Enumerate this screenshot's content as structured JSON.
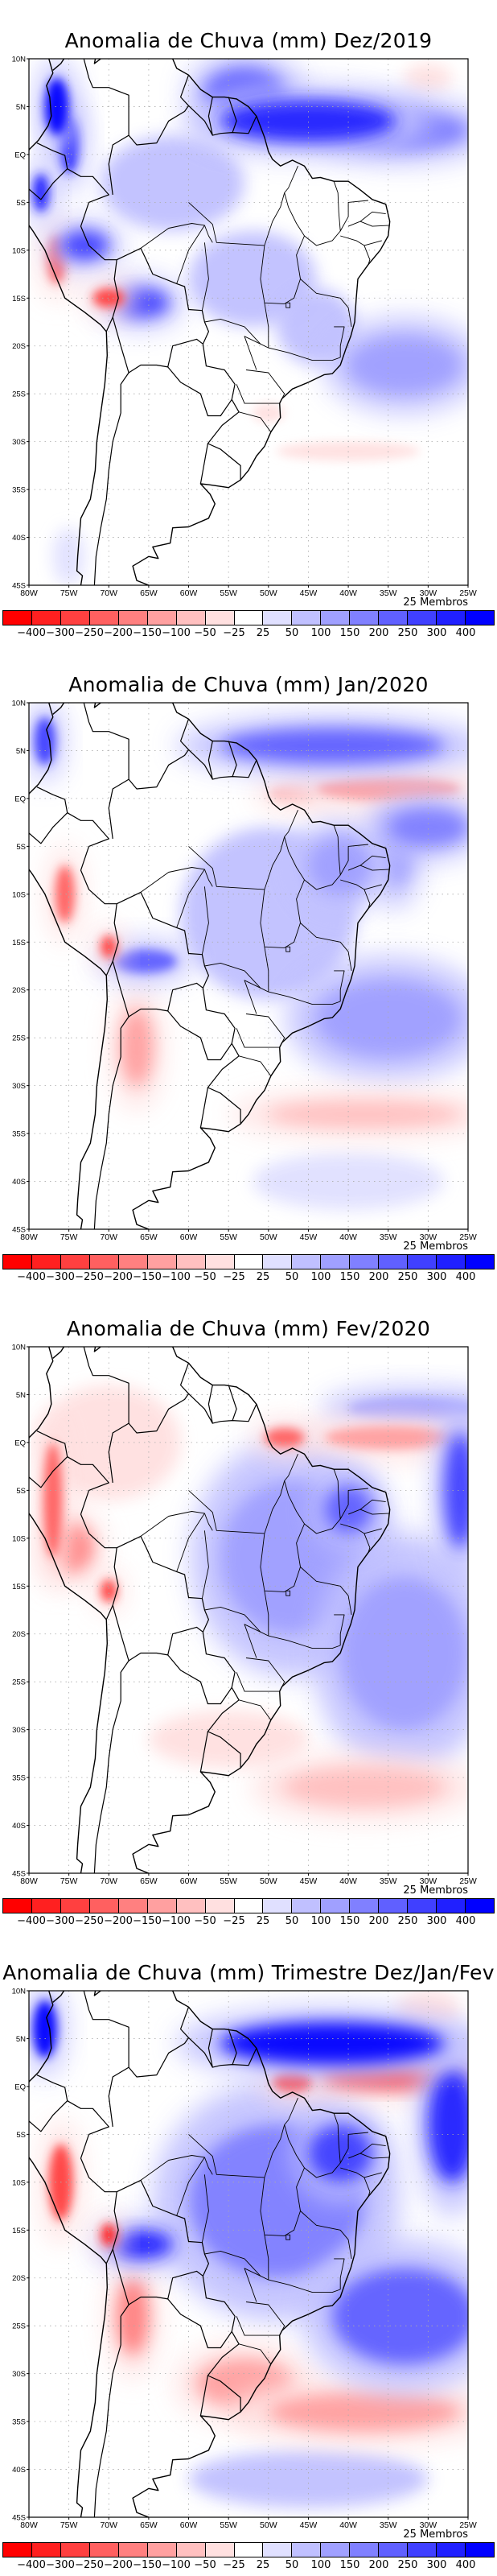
{
  "figure": {
    "members_label": "25 Membros",
    "lat_ticks": [
      {
        "value": 10,
        "label": "10N"
      },
      {
        "value": 5,
        "label": "5N"
      },
      {
        "value": 0,
        "label": "EQ"
      },
      {
        "value": -5,
        "label": "5S"
      },
      {
        "value": -10,
        "label": "10S"
      },
      {
        "value": -15,
        "label": "15S"
      },
      {
        "value": -20,
        "label": "20S"
      },
      {
        "value": -25,
        "label": "25S"
      },
      {
        "value": -30,
        "label": "30S"
      },
      {
        "value": -35,
        "label": "35S"
      },
      {
        "value": -40,
        "label": "40S"
      },
      {
        "value": -45,
        "label": "45S"
      }
    ],
    "lon_ticks": [
      {
        "value": -80,
        "label": "80W"
      },
      {
        "value": -75,
        "label": "75W"
      },
      {
        "value": -70,
        "label": "70W"
      },
      {
        "value": -65,
        "label": "65W"
      },
      {
        "value": -60,
        "label": "60W"
      },
      {
        "value": -55,
        "label": "55W"
      },
      {
        "value": -50,
        "label": "50W"
      },
      {
        "value": -45,
        "label": "45W"
      },
      {
        "value": -40,
        "label": "40W"
      },
      {
        "value": -35,
        "label": "35W"
      },
      {
        "value": -30,
        "label": "30W"
      },
      {
        "value": -25,
        "label": "25W"
      }
    ],
    "extent": {
      "lon_min": -80,
      "lon_max": -25,
      "lat_min": -45,
      "lat_max": 10
    },
    "colorbar": {
      "colors": [
        "#ff0000",
        "#ff2020",
        "#ff4040",
        "#ff6060",
        "#ff8080",
        "#ffa0a0",
        "#ffc0c0",
        "#ffe0e0",
        "#ffffff",
        "#e0e0ff",
        "#c0c0ff",
        "#a0a0ff",
        "#8080ff",
        "#6060ff",
        "#4040ff",
        "#2020ff",
        "#0000ff"
      ],
      "labels": [
        "-400",
        "-300",
        "-250",
        "-200",
        "-150",
        "-100",
        "-50",
        "-25",
        "25",
        "50",
        "100",
        "150",
        "200",
        "250",
        "300",
        "400"
      ]
    }
  },
  "chart_data": [
    {
      "type": "heatmap",
      "title": "Anomalia de Chuva (mm) Dez/2019",
      "variable": "precipitation anomaly (mm)",
      "ensemble": "25 Membros",
      "xlabel": "",
      "ylabel": "",
      "xlim": [
        -80,
        -25
      ],
      "ylim": [
        -45,
        10
      ],
      "levels": [
        -400,
        -300,
        -250,
        -200,
        -150,
        -100,
        -50,
        -25,
        25,
        50,
        100,
        150,
        200,
        250,
        300,
        400
      ],
      "features": [
        {
          "desc": "strong wet band N of Amazon mouth (ITCZ)",
          "lon": -45,
          "lat": 3.5,
          "rx": 11,
          "ry": 2.2,
          "level": 300
        },
        {
          "desc": "wet band extension east",
          "lon": -33,
          "lat": 2.5,
          "rx": 8,
          "ry": 2,
          "level": 150
        },
        {
          "desc": "wet band west",
          "lon": -53,
          "lat": 6.5,
          "rx": 5,
          "ry": 2.5,
          "level": 200
        },
        {
          "desc": "Colombian Andes wet",
          "lon": -76.5,
          "lat": 5,
          "rx": 1.5,
          "ry": 3,
          "level": 400
        },
        {
          "desc": "Andes wet spots",
          "lon": -75,
          "lat": 1,
          "rx": 1.2,
          "ry": 3,
          "level": 300
        },
        {
          "desc": "Peru coast wet",
          "lon": -78.5,
          "lat": -4,
          "rx": 1,
          "ry": 2,
          "level": 300
        },
        {
          "desc": "Peruvian Andes dry",
          "lon": -76.5,
          "lat": -11,
          "rx": 1.2,
          "ry": 2.5,
          "level": -250
        },
        {
          "desc": "Bolivian Andes dry",
          "lon": -70,
          "lat": -15,
          "rx": 2,
          "ry": 1,
          "level": -300
        },
        {
          "desc": "Peru highlands wet",
          "lon": -73,
          "lat": -9.5,
          "rx": 3,
          "ry": 1.5,
          "level": 250
        },
        {
          "desc": "Bolivia wet",
          "lon": -66,
          "lat": -15.5,
          "rx": 3.5,
          "ry": 1.5,
          "level": 250
        },
        {
          "desc": "Amazon weak wet",
          "lon": -62,
          "lat": -3,
          "rx": 9,
          "ry": 5,
          "level": 50
        },
        {
          "desc": "Brazil interior weak wet",
          "lon": -52,
          "lat": -13,
          "rx": 8,
          "ry": 5,
          "level": 50
        },
        {
          "desc": "Southeast Brazil weak wet",
          "lon": -44,
          "lat": -18,
          "rx": 5,
          "ry": 4,
          "level": 50
        },
        {
          "desc": "SACZ ocean wet",
          "lon": -33,
          "lat": -22,
          "rx": 7,
          "ry": 3,
          "level": 100
        },
        {
          "desc": "Atlantic weak dry NE",
          "lon": -30,
          "lat": 8,
          "rx": 3,
          "ry": 1.5,
          "level": -50
        },
        {
          "desc": "South Brazil dry",
          "lon": -50,
          "lat": -27,
          "rx": 2,
          "ry": 1,
          "level": -50
        },
        {
          "desc": "South Atlantic dry streaks",
          "lon": -40,
          "lat": -31,
          "rx": 9,
          "ry": 1,
          "level": -50
        },
        {
          "desc": "Patagonia weak wet",
          "lon": -75,
          "lat": -42,
          "rx": 2,
          "ry": 3,
          "level": 25
        }
      ]
    },
    {
      "type": "heatmap",
      "title": "Anomalia de Chuva (mm) Jan/2020",
      "variable": "precipitation anomaly (mm)",
      "ensemble": "25 Membros",
      "xlabel": "",
      "ylabel": "",
      "xlim": [
        -80,
        -25
      ],
      "ylim": [
        -45,
        10
      ],
      "levels": [
        -400,
        -300,
        -250,
        -200,
        -150,
        -100,
        -50,
        -25,
        25,
        50,
        100,
        150,
        200,
        250,
        300,
        400
      ],
      "features": [
        {
          "desc": "wet band N of equator",
          "lon": -42,
          "lat": 5.5,
          "rx": 14,
          "ry": 1.8,
          "level": 200
        },
        {
          "desc": "dry band along equator Atlantic",
          "lon": -35,
          "lat": 1,
          "rx": 9,
          "ry": 1.2,
          "level": -150
        },
        {
          "desc": "Amazon mouth dry",
          "lon": -47,
          "lat": 0.5,
          "rx": 3,
          "ry": 0.8,
          "level": -100
        },
        {
          "desc": "wet band S of equator east",
          "lon": -30,
          "lat": -3,
          "rx": 5,
          "ry": 2,
          "level": 150
        },
        {
          "desc": "NE Brazil coast wet",
          "lon": -34,
          "lat": -5,
          "rx": 2,
          "ry": 4,
          "level": 100
        },
        {
          "desc": "Colombia wet",
          "lon": -78,
          "lat": 6,
          "rx": 1.3,
          "ry": 2.5,
          "level": 250
        },
        {
          "desc": "Peruvian Andes dry",
          "lon": -75.5,
          "lat": -10,
          "rx": 1.2,
          "ry": 3,
          "level": -250
        },
        {
          "desc": "Bolivian Andes dry spot",
          "lon": -70,
          "lat": -15.5,
          "rx": 1,
          "ry": 1.2,
          "level": -300
        },
        {
          "desc": "Bolivia wet diagonal",
          "lon": -65.5,
          "lat": -17,
          "rx": 4,
          "ry": 1.2,
          "level": 200
        },
        {
          "desc": "NW Argentina dry",
          "lon": -66.5,
          "lat": -26,
          "rx": 2,
          "ry": 4,
          "level": -150
        },
        {
          "desc": "Brazil interior wet",
          "lon": -50,
          "lat": -12,
          "rx": 11,
          "ry": 9,
          "level": 50
        },
        {
          "desc": "NE Brazil wet",
          "lon": -41,
          "lat": -7,
          "rx": 4,
          "ry": 3,
          "level": 100
        },
        {
          "desc": "SACZ ocean wet",
          "lon": -35,
          "lat": -23,
          "rx": 9,
          "ry": 4,
          "level": 100
        },
        {
          "desc": "South Atlantic dry streak",
          "lon": -38,
          "lat": -33,
          "rx": 12,
          "ry": 1.3,
          "level": -100
        },
        {
          "desc": "southern Atlantic weak wet",
          "lon": -40,
          "lat": -40,
          "rx": 12,
          "ry": 3,
          "level": 25
        }
      ]
    },
    {
      "type": "heatmap",
      "title": "Anomalia de Chuva (mm) Fev/2020",
      "variable": "precipitation anomaly (mm)",
      "ensemble": "25 Membros",
      "xlabel": "",
      "ylabel": "",
      "xlim": [
        -80,
        -25
      ],
      "ylim": [
        -45,
        10
      ],
      "levels": [
        -400,
        -300,
        -250,
        -200,
        -150,
        -100,
        -50,
        -25,
        25,
        50,
        100,
        150,
        200,
        250,
        300,
        400
      ],
      "features": [
        {
          "desc": "NW South America dry",
          "lon": -70,
          "lat": 0,
          "rx": 9,
          "ry": 6,
          "level": -50
        },
        {
          "desc": "Andes dry line",
          "lon": -77,
          "lat": -6,
          "rx": 1.2,
          "ry": 6,
          "level": -250
        },
        {
          "desc": "Peru Andes dry",
          "lon": -74.5,
          "lat": -11,
          "rx": 2.5,
          "ry": 2.5,
          "level": -200
        },
        {
          "desc": "Bolivian dry spot",
          "lon": -70,
          "lat": -15.5,
          "rx": 1,
          "ry": 1.2,
          "level": -300
        },
        {
          "desc": "Amazon mouth dry",
          "lon": -48,
          "lat": 0.5,
          "rx": 2.5,
          "ry": 1,
          "level": -250
        },
        {
          "desc": "Atlantic dry band",
          "lon": -35,
          "lat": 0.5,
          "rx": 8,
          "ry": 1.2,
          "level": -150
        },
        {
          "desc": "Atlantic wet band north",
          "lon": -32,
          "lat": 3.5,
          "rx": 8,
          "ry": 1.2,
          "level": 100
        },
        {
          "desc": "Central Brazil wet",
          "lon": -47,
          "lat": -12,
          "rx": 9,
          "ry": 8,
          "level": 100
        },
        {
          "desc": "NE Brazil strong wet",
          "lon": -40,
          "lat": -7,
          "rx": 3,
          "ry": 2.5,
          "level": 200
        },
        {
          "desc": "Far east Atlantic wet",
          "lon": -26,
          "lat": -5,
          "rx": 2,
          "ry": 6,
          "level": 250
        },
        {
          "desc": "South Atlantic wet",
          "lon": -33,
          "lat": -22,
          "rx": 8,
          "ry": 8,
          "level": 100
        },
        {
          "desc": "South Brazil / Argentina dry",
          "lon": -55,
          "lat": -31,
          "rx": 10,
          "ry": 3,
          "level": -50
        },
        {
          "desc": "South Atlantic dry band",
          "lon": -38,
          "lat": -36,
          "rx": 10,
          "ry": 2,
          "level": -100
        }
      ]
    },
    {
      "type": "heatmap",
      "title": "Anomalia de Chuva (mm) Trimestre Dez/Jan/Fev",
      "variable": "precipitation anomaly (mm)",
      "ensemble": "25 Membros",
      "xlabel": "",
      "ylabel": "",
      "xlim": [
        -80,
        -25
      ],
      "ylim": [
        -45,
        10
      ],
      "levels": [
        -400,
        -300,
        -250,
        -200,
        -150,
        -100,
        -50,
        -25,
        25,
        50,
        100,
        150,
        200,
        250,
        300,
        400
      ],
      "features": [
        {
          "desc": "strong wet band N (ITCZ)",
          "lon": -42,
          "lat": 4.5,
          "rx": 14,
          "ry": 2.2,
          "level": 400
        },
        {
          "desc": "dry band along equator",
          "lon": -34,
          "lat": 1,
          "rx": 10,
          "ry": 1.3,
          "level": -300
        },
        {
          "desc": "Amazon mouth dry",
          "lon": -47,
          "lat": 0.5,
          "rx": 2.5,
          "ry": 1,
          "level": -300
        },
        {
          "desc": "weak dry NE Atlantic",
          "lon": -30,
          "lat": 8,
          "rx": 4,
          "ry": 2,
          "level": -50
        },
        {
          "desc": "east Atlantic wet",
          "lon": -27,
          "lat": -4,
          "rx": 3,
          "ry": 6,
          "level": 300
        },
        {
          "desc": "NE Brazil strong wet",
          "lon": -41,
          "lat": -7,
          "rx": 4,
          "ry": 3,
          "level": 250
        },
        {
          "desc": "central Brazil wet",
          "lon": -49,
          "lat": -12,
          "rx": 11,
          "ry": 8,
          "level": 150
        },
        {
          "desc": "Colombia wet",
          "lon": -78,
          "lat": 6,
          "rx": 1.5,
          "ry": 3,
          "level": 400
        },
        {
          "desc": "Peru Andes dry",
          "lon": -76,
          "lat": -10,
          "rx": 1.5,
          "ry": 4,
          "level": -300
        },
        {
          "desc": "Bolivia dry spot",
          "lon": -70,
          "lat": -15.5,
          "rx": 1,
          "ry": 1.2,
          "level": -400
        },
        {
          "desc": "Bolivia wet diagonal",
          "lon": -66,
          "lat": -16.5,
          "rx": 4,
          "ry": 1.5,
          "level": 300
        },
        {
          "desc": "NW Argentina dry",
          "lon": -67,
          "lat": -24,
          "rx": 2,
          "ry": 4,
          "level": -200
        },
        {
          "desc": "SACZ ocean wet",
          "lon": -33,
          "lat": -24,
          "rx": 9,
          "ry": 5,
          "level": 200
        },
        {
          "desc": "South Brazil/Uruguay dry",
          "lon": -53,
          "lat": -31,
          "rx": 6,
          "ry": 2.5,
          "level": -150
        },
        {
          "desc": "South Atlantic dry band",
          "lon": -38,
          "lat": -34,
          "rx": 12,
          "ry": 2,
          "level": -150
        },
        {
          "desc": "southern weak wet",
          "lon": -45,
          "lat": -41,
          "rx": 15,
          "ry": 3,
          "level": 50
        }
      ]
    }
  ]
}
